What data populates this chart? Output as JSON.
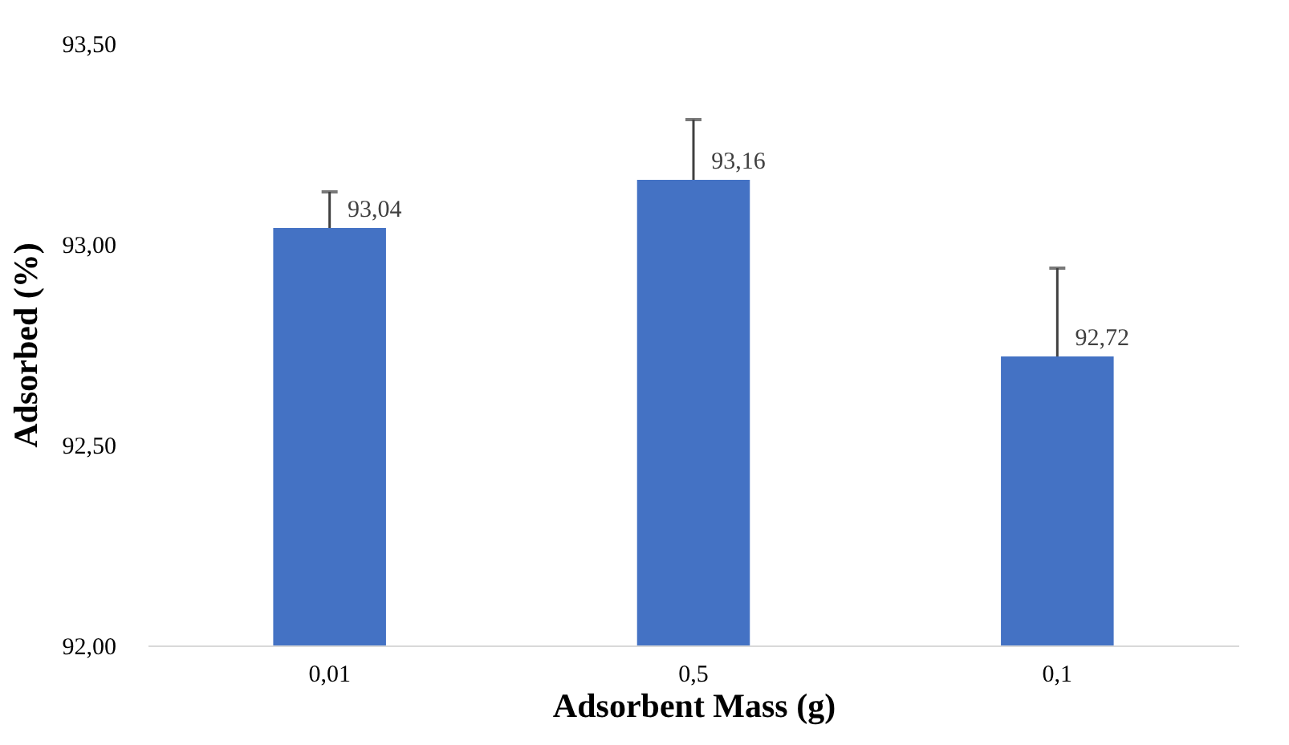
{
  "chart_data": {
    "type": "bar",
    "xlabel": "Adsorbent Mass (g)",
    "ylabel": "Adsorbed (%)",
    "categories": [
      "0,01",
      "0,5",
      "0,1"
    ],
    "values": [
      93.04,
      93.16,
      92.72
    ],
    "value_labels": [
      "93,04",
      "93,16",
      "92,72"
    ],
    "errors": [
      [
        93.04,
        93.13
      ],
      [
        93.16,
        93.31
      ],
      [
        92.72,
        92.94
      ]
    ],
    "color": "#4472c4",
    "ylim": [
      92.0,
      93.5
    ],
    "yticks": [
      {
        "value": 92.0,
        "label": "92,00"
      },
      {
        "value": 92.5,
        "label": "92,50"
      },
      {
        "value": 93.0,
        "label": "93,00"
      },
      {
        "value": 93.5,
        "label": "93,50"
      }
    ],
    "grid": false
  }
}
